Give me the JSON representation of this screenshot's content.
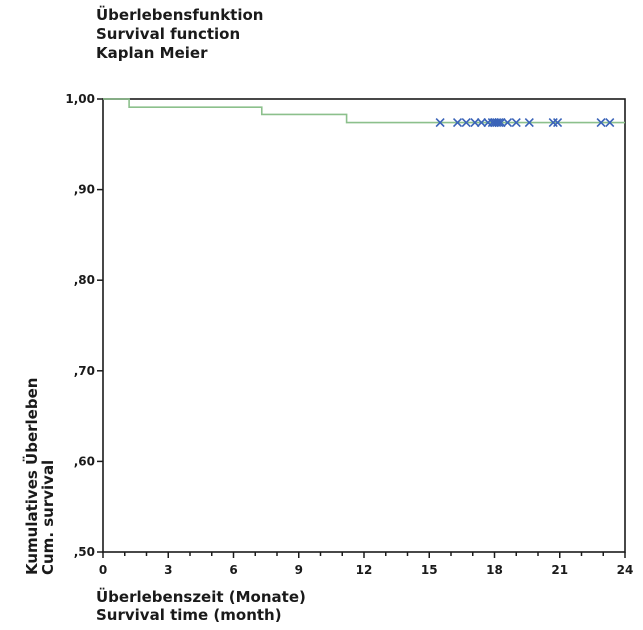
{
  "title": {
    "lines": [
      "Überlebensfunktion",
      "Survival function",
      "Kaplan Meier"
    ]
  },
  "chart_data": {
    "type": "line",
    "title": "Überlebensfunktion / Survival function / Kaplan Meier",
    "xlabel_lines": [
      "Überlebenszeit (Monate)",
      "Survival time (month)"
    ],
    "ylabel_lines": [
      "Kumulatives Überleben",
      "Cum. survival"
    ],
    "xlim": [
      0,
      24
    ],
    "ylim": [
      0.5,
      1.0
    ],
    "x_ticks": [
      0,
      3,
      6,
      9,
      12,
      15,
      18,
      21,
      24
    ],
    "x_tick_labels": [
      "0",
      "3",
      "6",
      "9",
      "12",
      "15",
      "18",
      "21",
      "24"
    ],
    "y_ticks": [
      0.5,
      0.6,
      0.7,
      0.8,
      0.9,
      1.0
    ],
    "y_tick_labels": [
      ",50",
      ",60",
      ",70",
      ",80",
      ",90",
      "1,00"
    ],
    "x_minor_step": 1,
    "series": [
      {
        "style": "step",
        "color": "#8cc08c",
        "steps": [
          [
            0,
            1.0
          ],
          [
            1.2,
            0.991
          ],
          [
            7.3,
            0.983
          ],
          [
            11.2,
            0.974
          ],
          [
            24,
            0.974
          ]
        ],
        "censored": [
          15.5,
          16.3,
          16.7,
          17.1,
          17.4,
          17.7,
          17.9,
          18.0,
          18.1,
          18.2,
          18.3,
          18.6,
          19.0,
          19.6,
          20.7,
          20.9,
          22.9,
          23.3
        ],
        "censor_color": "#3a63b8"
      }
    ],
    "grid": false,
    "legend": "none"
  }
}
